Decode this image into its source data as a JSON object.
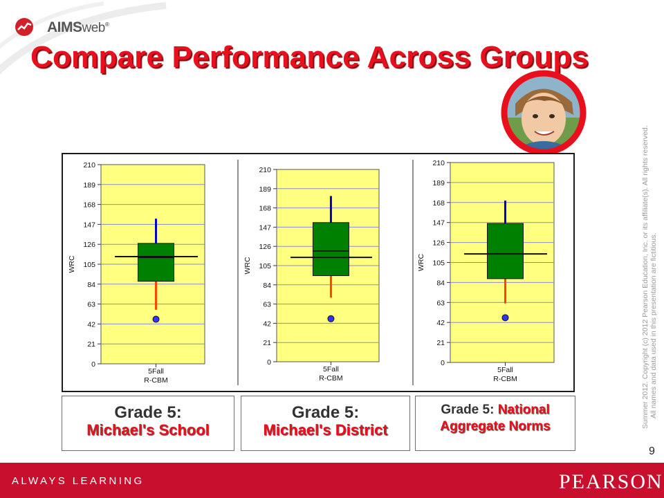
{
  "header": {
    "logo_text_bold": "AIMS",
    "logo_text_light": "web",
    "logo_registered": "®",
    "title": "Compare Performance Across Groups"
  },
  "copyright": {
    "line1": "Summer 2012.  Copyright (c) 2012 Pearson Education, Inc. or its affiliate(s).  All rights reserved.",
    "line2": "All names and data used in this presentation are fictitious."
  },
  "chart_data": [
    {
      "type": "boxplot",
      "ylabel": "WRC",
      "ylim": [
        0,
        210
      ],
      "yticks": [
        0,
        21,
        42,
        63,
        84,
        105,
        126,
        147,
        168,
        189,
        210
      ],
      "category_line1": "5Fall",
      "category_line2": "R-CBM",
      "whisker_low": 57,
      "q1": 87,
      "median": 112,
      "q3": 127,
      "whisker_high": 153,
      "student_score": 47,
      "norm_line": 113
    },
    {
      "type": "boxplot",
      "ylabel": "WRC",
      "ylim": [
        0,
        210
      ],
      "yticks": [
        0,
        21,
        42,
        63,
        84,
        105,
        126,
        147,
        168,
        189,
        210
      ],
      "category_line1": "5Fall",
      "category_line2": "R-CBM",
      "whisker_low": 70,
      "q1": 94,
      "median": 121,
      "q3": 152,
      "whisker_high": 181,
      "student_score": 47,
      "norm_line": 114
    },
    {
      "type": "boxplot",
      "ylabel": "WRC",
      "ylim": [
        0,
        210
      ],
      "yticks": [
        0,
        21,
        42,
        63,
        84,
        105,
        126,
        147,
        168,
        189,
        210
      ],
      "category_line1": "5Fall",
      "category_line2": "R-CBM",
      "whisker_low": 62,
      "q1": 88,
      "median": 114,
      "q3": 146,
      "whisker_high": 170,
      "student_score": 47,
      "norm_line": 114
    }
  ],
  "colors": {
    "plot_bg": "#ffff80",
    "box_fill": "#008000",
    "upper_whisker": "#0000cc",
    "lower_whisker": "#ff4500",
    "gridline": "#8a8ad0",
    "student_dot": "#3333ff",
    "title_red": "#e8101c",
    "footer_red": "#c8102e"
  },
  "labels": [
    {
      "line1": "Grade 5:",
      "line2": "Michael's School"
    },
    {
      "line1": "Grade 5:",
      "line2": "Michael's District"
    },
    {
      "line1_prefix": "Grade 5: ",
      "line1_red": "National",
      "line2": "Aggregate Norms"
    }
  ],
  "page_number": "9",
  "footer": {
    "left": "ALWAYS LEARNING",
    "right": "PEARSON"
  }
}
